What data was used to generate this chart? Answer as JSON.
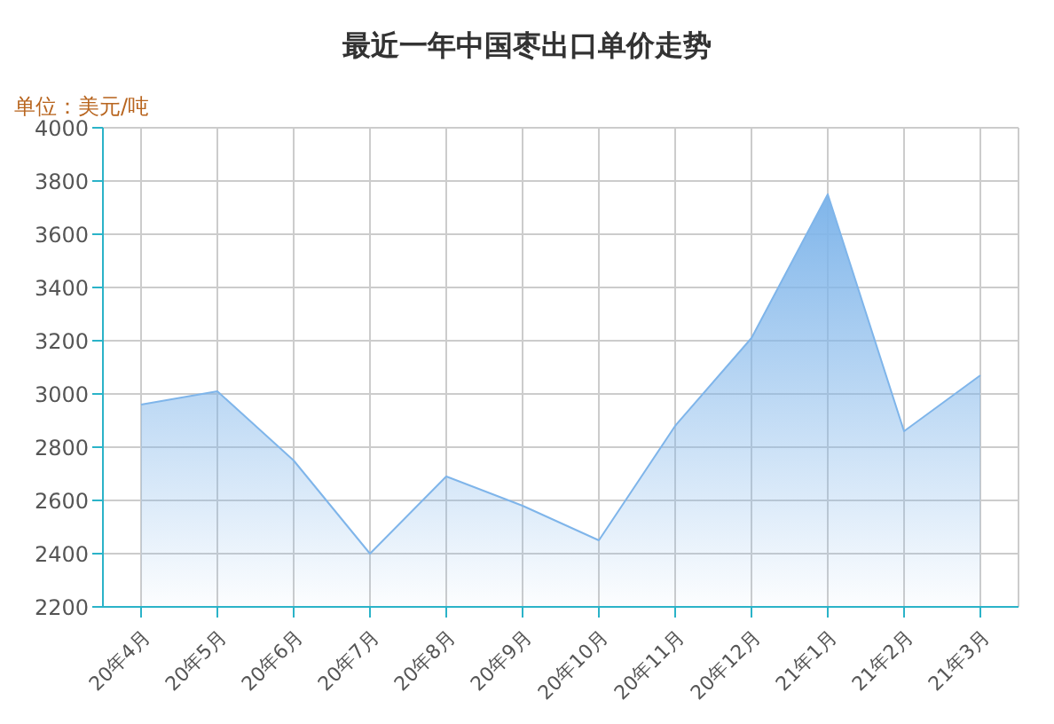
{
  "chart_data": {
    "type": "area",
    "title": "最近一年中国枣出口单价走势",
    "ylabel": "单位：美元/吨",
    "categories": [
      "20年4月",
      "20年5月",
      "20年6月",
      "20年7月",
      "20年8月",
      "20年9月",
      "20年10月",
      "20年11月",
      "20年12月",
      "21年1月",
      "21年2月",
      "21年3月"
    ],
    "series": [
      {
        "color": "#7fb5ea",
        "values": [
          2960,
          3010,
          2750,
          2400,
          2690,
          2580,
          2450,
          2880,
          3210,
          3750,
          2860,
          3070
        ]
      }
    ],
    "ylim": [
      2200,
      4000
    ],
    "yticks": [
      2200,
      2400,
      2600,
      2800,
      3000,
      3200,
      3400,
      3600,
      3800,
      4000
    ],
    "grid": true,
    "marker": "none",
    "legend": false
  }
}
